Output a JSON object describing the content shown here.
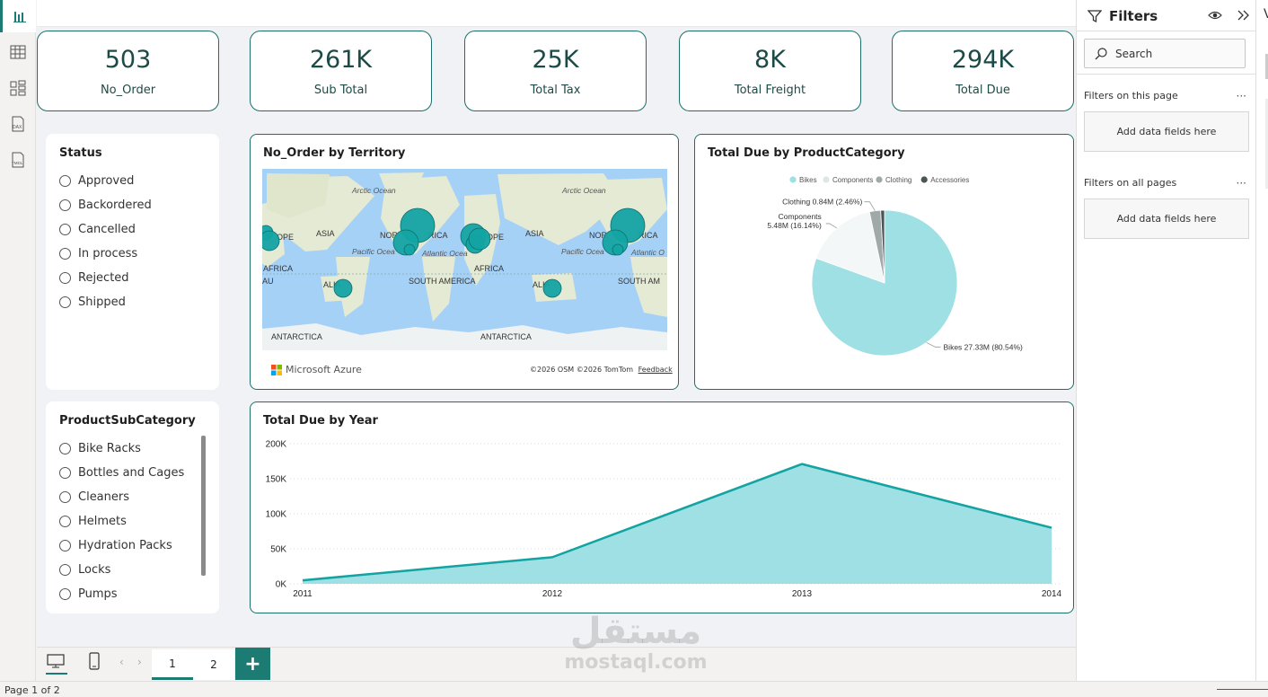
{
  "kpis": [
    {
      "value": "503",
      "label": "No_Order"
    },
    {
      "value": "261K",
      "label": "Sub Total"
    },
    {
      "value": "25K",
      "label": "Total Tax"
    },
    {
      "value": "8K",
      "label": "Total Freight"
    },
    {
      "value": "294K",
      "label": "Total Due"
    }
  ],
  "status_slicer": {
    "title": "Status",
    "items": [
      "Approved",
      "Backordered",
      "Cancelled",
      "In process",
      "Rejected",
      "Shipped"
    ]
  },
  "subcategory_slicer": {
    "title": "ProductSubCategory",
    "items": [
      "Bike Racks",
      "Bottles and Cages",
      "Cleaners",
      "Helmets",
      "Hydration Packs",
      "Locks",
      "Pumps"
    ]
  },
  "map": {
    "title": "No_Order by Territory",
    "labels": {
      "arctic": "Arctic Ocean",
      "asia": "ASIA",
      "europe_a": "OPE",
      "europe_b": "OPE",
      "north_america_a": "NOR",
      "north_america_b": "RICA",
      "north_america_c": "NOR",
      "north_america_d": "RICA",
      "pacific": "Pacific Ocea",
      "atlantic": "Atlantic Ocea",
      "atlantic2": "Atlantic O",
      "africa": "AFRICA",
      "australia": "ALIA",
      "australia_a": "AU",
      "south_america": "SOUTH AMERICA",
      "south_america_cut": "SOUTH AM",
      "antarctica": "ANTARCTICA"
    },
    "brand": "Microsoft Azure",
    "attribution": "©2026 OSM  ©2026 TomTom",
    "feedback": "Feedback",
    "colors": {
      "water": "#a6d1f7",
      "land": "#e8ecd9",
      "bubble": "#13a3a3"
    }
  },
  "pie": {
    "title": "Total Due by ProductCategory",
    "chart_data": {
      "type": "pie",
      "legend": [
        "Bikes",
        "Components",
        "Clothing",
        "Accessories"
      ],
      "slices": [
        {
          "name": "Bikes",
          "value": 27.33,
          "pct": 80.54,
          "label": "Bikes 27.33M (80.54%)",
          "color": "#9ee0e3"
        },
        {
          "name": "Components",
          "value": 5.48,
          "pct": 16.14,
          "label_line1": "Components",
          "label_line2": "5.48M (16.14%)",
          "color": "#f4f7f7"
        },
        {
          "name": "Clothing",
          "value": 0.84,
          "pct": 2.46,
          "label": "Clothing 0.84M (2.46%)",
          "color": "#a1a9a8"
        },
        {
          "name": "Accessories",
          "value": 0.29,
          "pct": 0.86,
          "color": "#4a5554"
        }
      ]
    }
  },
  "area": {
    "title": "Total Due by Year",
    "chart_data": {
      "type": "area",
      "x": [
        "2011",
        "2012",
        "2013",
        "2014"
      ],
      "values": [
        5000,
        38000,
        171000,
        80000
      ],
      "yticks": [
        "0K",
        "50K",
        "100K",
        "150K",
        "200K"
      ],
      "ylim": [
        0,
        200000
      ],
      "grid": true,
      "line_color": "#13a3a3",
      "fill_color": "#9ee0e3"
    }
  },
  "filters": {
    "title": "Filters",
    "search_placeholder": "Search",
    "on_this_page": "Filters on this page",
    "on_all_pages": "Filters on all pages",
    "add_fields": "Add data fields here",
    "dots": "···"
  },
  "pages": {
    "tabs": [
      "1",
      "2"
    ],
    "add": "+",
    "status": "Page 1 of 2",
    "prev": "‹",
    "next": "›"
  },
  "watermark": {
    "arabic": "مستقل",
    "latin": "mostaql.com"
  },
  "right_pane_letter": "V"
}
